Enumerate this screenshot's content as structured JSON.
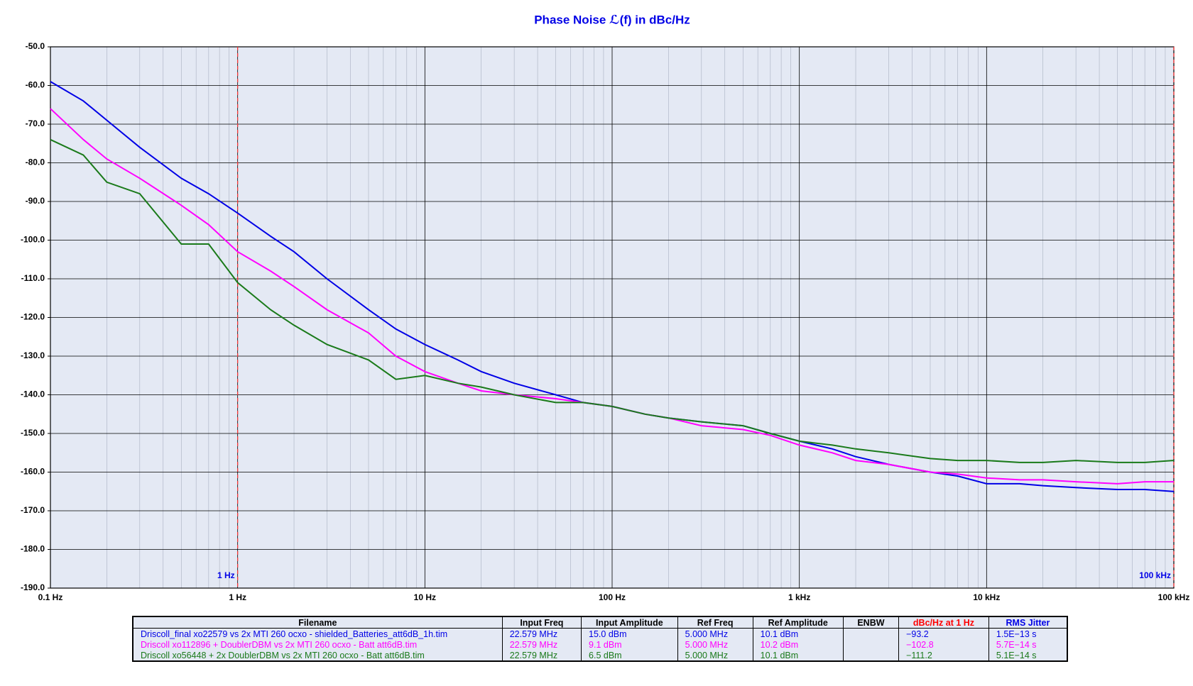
{
  "chart_data": {
    "type": "line",
    "title": "Phase Noise ℒ(f) in dBc/Hz",
    "log_x": true,
    "grid": true,
    "x": [
      0.1,
      0.15,
      0.2,
      0.3,
      0.5,
      0.7,
      1,
      1.5,
      2,
      3,
      5,
      7,
      10,
      15,
      20,
      30,
      50,
      70,
      100,
      150,
      200,
      300,
      500,
      700,
      1000,
      1500,
      2000,
      3000,
      5000,
      7000,
      10000,
      15000,
      20000,
      30000,
      50000,
      70000,
      100000
    ],
    "xlim": [
      0.1,
      100000
    ],
    "xticks": [
      {
        "value": 0.1,
        "label": "0.1 Hz"
      },
      {
        "value": 1,
        "label": "1 Hz"
      },
      {
        "value": 10,
        "label": "10 Hz"
      },
      {
        "value": 100,
        "label": "100 Hz"
      },
      {
        "value": 1000,
        "label": "1 kHz"
      },
      {
        "value": 10000,
        "label": "10 kHz"
      },
      {
        "value": 100000,
        "label": "100 kHz"
      }
    ],
    "ylim": [
      -190,
      -50
    ],
    "yticks": [
      {
        "value": -50,
        "label": "-50.0"
      },
      {
        "value": -60,
        "label": "-60.0"
      },
      {
        "value": -70,
        "label": "-70.0"
      },
      {
        "value": -80,
        "label": "-80.0"
      },
      {
        "value": -90,
        "label": "-90.0"
      },
      {
        "value": -100,
        "label": "-100.0"
      },
      {
        "value": -110,
        "label": "-110.0"
      },
      {
        "value": -120,
        "label": "-120.0"
      },
      {
        "value": -130,
        "label": "-130.0"
      },
      {
        "value": -140,
        "label": "-140.0"
      },
      {
        "value": -150,
        "label": "-150.0"
      },
      {
        "value": -160,
        "label": "-160.0"
      },
      {
        "value": -170,
        "label": "-170.0"
      },
      {
        "value": -180,
        "label": "-180.0"
      },
      {
        "value": -190,
        "label": "-190.0"
      }
    ],
    "markers": [
      {
        "x": 1,
        "label": "1 Hz"
      },
      {
        "x": 100000,
        "label": "100 kHz"
      }
    ],
    "series": [
      {
        "name": "Driscoll_final xo22579 vs 2x MTI 260 ocxo - shielded_Batteries_att6dB_1h.tim",
        "color": "#0000e6",
        "input_freq": "22.579 MHz",
        "input_amplitude": "15.0 dBm",
        "ref_freq": "5.000 MHz",
        "ref_amplitude": "10.1 dBm",
        "dbc_at_1hz": "−93.2",
        "rms_jitter": "1.5E−13 s",
        "values": [
          -59,
          -64,
          -69,
          -76,
          -84,
          -88,
          -93,
          -99,
          -103,
          -110,
          -118,
          -123,
          -127,
          -131,
          -134,
          -137,
          -140,
          -142,
          -143,
          -145,
          -146,
          -147,
          -148,
          -150,
          -152,
          -154,
          -156,
          -158,
          -160,
          -161,
          -163,
          -163,
          -163.5,
          -164,
          -164.5,
          -164.5,
          -165
        ]
      },
      {
        "name": "Driscoll xo112896 + DoublerDBM vs 2x MTI 260 ocxo - Batt att6dB.tim",
        "color": "#ff00ff",
        "input_freq": "22.579 MHz",
        "input_amplitude": "9.1 dBm",
        "ref_freq": "5.000 MHz",
        "ref_amplitude": "10.2 dBm",
        "dbc_at_1hz": "−102.8",
        "rms_jitter": "5.7E−14 s",
        "values": [
          -66,
          -74,
          -79,
          -84,
          -91,
          -96,
          -103,
          -108,
          -112,
          -118,
          -124,
          -130,
          -134,
          -137,
          -139,
          -140,
          -141,
          -142,
          -143,
          -145,
          -146,
          -148,
          -149,
          -150.5,
          -153,
          -155,
          -157,
          -158,
          -160,
          -160.5,
          -161.5,
          -162,
          -162,
          -162.5,
          -163,
          -162.5,
          -162.5
        ]
      },
      {
        "name": "Driscoll xo56448 + 2x DoublerDBM vs 2x MTI 260 ocxo - Batt att6dB.tim",
        "color": "#1a7a1a",
        "input_freq": "22.579 MHz",
        "input_amplitude": "6.5 dBm",
        "ref_freq": "5.000 MHz",
        "ref_amplitude": "10.1 dBm",
        "dbc_at_1hz": "−111.2",
        "rms_jitter": "5.1E−14 s",
        "values": [
          -74,
          -78,
          -85,
          -88,
          -101,
          -101,
          -111,
          -118,
          -122,
          -127,
          -131,
          -136,
          -135,
          -137,
          -138,
          -140,
          -142,
          -142,
          -143,
          -145,
          -146,
          -147,
          -148,
          -150,
          -152,
          -153,
          -154,
          -155,
          -156.5,
          -157,
          -157,
          -157.5,
          -157.5,
          -157,
          -157.5,
          -157.5,
          -157
        ]
      }
    ],
    "legend_table": {
      "headers": [
        "Filename",
        "Input Freq",
        "Input Amplitude",
        "Ref Freq",
        "Ref Amplitude",
        "ENBW",
        "dBc/Hz at 1 Hz",
        "RMS Jitter"
      ]
    }
  }
}
